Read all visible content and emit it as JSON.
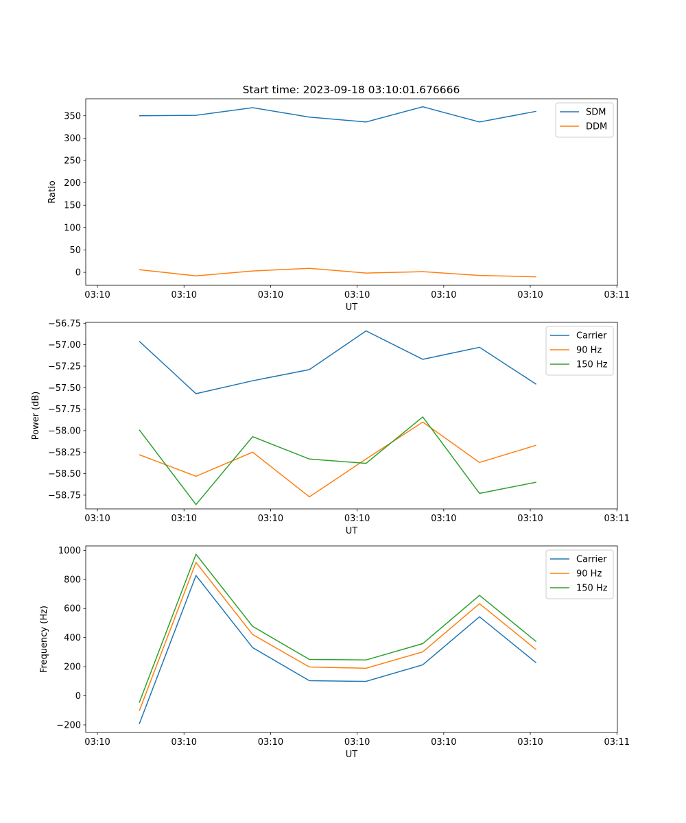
{
  "figure_title": "Start time: 2023-09-18 03:10:01.676666",
  "chart_data": [
    {
      "type": "line",
      "title": "Start time: 2023-09-18 03:10:01.676666",
      "xlabel": "UT",
      "ylabel": "Ratio",
      "x": [
        4.83,
        11.38,
        17.93,
        24.48,
        31.03,
        37.58,
        44.13,
        50.68
      ],
      "xlim": [
        -1.35,
        60.06
      ],
      "xticks": [
        0,
        10,
        20,
        30,
        40,
        50,
        60
      ],
      "xtick_labels": [
        "03:10",
        "03:10",
        "03:10",
        "03:10",
        "03:10",
        "03:10",
        "03:11"
      ],
      "ylim": [
        -29,
        388
      ],
      "yticks": [
        0,
        50,
        100,
        150,
        200,
        250,
        300,
        350
      ],
      "ytick_labels": [
        "0",
        "50",
        "100",
        "150",
        "200",
        "250",
        "300",
        "350"
      ],
      "legend": "top-right",
      "series": [
        {
          "name": "SDM",
          "color": "#1f77b4",
          "values": [
            350,
            351,
            368,
            347,
            336,
            370,
            336,
            360
          ]
        },
        {
          "name": "DDM",
          "color": "#ff7f0e",
          "values": [
            6,
            -8,
            3,
            9,
            -1.5,
            1.5,
            -7,
            -10
          ]
        }
      ]
    },
    {
      "type": "line",
      "xlabel": "UT",
      "ylabel": "Power (dB)",
      "x": [
        4.83,
        11.38,
        17.93,
        24.48,
        31.03,
        37.58,
        44.13,
        50.68
      ],
      "xlim": [
        -1.35,
        60.06
      ],
      "xticks": [
        0,
        10,
        20,
        30,
        40,
        50,
        60
      ],
      "xtick_labels": [
        "03:10",
        "03:10",
        "03:10",
        "03:10",
        "03:10",
        "03:10",
        "03:11"
      ],
      "ylim": [
        -58.91,
        -56.74
      ],
      "yticks": [
        -56.75,
        -57.0,
        -57.25,
        -57.5,
        -57.75,
        -58.0,
        -58.25,
        -58.5,
        -58.75
      ],
      "ytick_labels": [
        "−56.75",
        "−57.00",
        "−57.25",
        "−57.50",
        "−57.75",
        "−58.00",
        "−58.25",
        "−58.50",
        "−58.75"
      ],
      "legend": "top-right",
      "series": [
        {
          "name": "Carrier",
          "color": "#1f77b4",
          "values": [
            -56.96,
            -57.57,
            -57.42,
            -57.29,
            -56.84,
            -57.17,
            -57.03,
            -57.46
          ]
        },
        {
          "name": "90 Hz",
          "color": "#ff7f0e",
          "values": [
            -58.28,
            -58.53,
            -58.25,
            -58.77,
            -58.33,
            -57.9,
            -58.37,
            -58.17
          ]
        },
        {
          "name": "150 Hz",
          "color": "#2ca02c",
          "values": [
            -57.99,
            -58.86,
            -58.07,
            -58.33,
            -58.38,
            -57.84,
            -58.73,
            -58.6
          ]
        }
      ]
    },
    {
      "type": "line",
      "xlabel": "UT",
      "ylabel": "Frequency (Hz)",
      "x": [
        4.83,
        11.38,
        17.93,
        24.48,
        31.03,
        37.58,
        44.13,
        50.68
      ],
      "xlim": [
        -1.35,
        60.06
      ],
      "xticks": [
        0,
        10,
        20,
        30,
        40,
        50,
        60
      ],
      "xtick_labels": [
        "03:10",
        "03:10",
        "03:10",
        "03:10",
        "03:10",
        "03:10",
        "03:11"
      ],
      "ylim": [
        -252,
        1030
      ],
      "yticks": [
        -200,
        0,
        200,
        400,
        600,
        800,
        1000
      ],
      "ytick_labels": [
        "−200",
        "0",
        "200",
        "400",
        "600",
        "800",
        "1000"
      ],
      "legend": "top-right",
      "series": [
        {
          "name": "Carrier",
          "color": "#1f77b4",
          "values": [
            -194,
            827,
            331,
            104,
            99,
            213,
            543,
            227
          ]
        },
        {
          "name": "90 Hz",
          "color": "#ff7f0e",
          "values": [
            -104,
            917,
            421,
            198,
            189,
            302,
            633,
            317
          ]
        },
        {
          "name": "150 Hz",
          "color": "#2ca02c",
          "values": [
            -47,
            973,
            477,
            250,
            246,
            359,
            690,
            373
          ]
        }
      ]
    }
  ]
}
